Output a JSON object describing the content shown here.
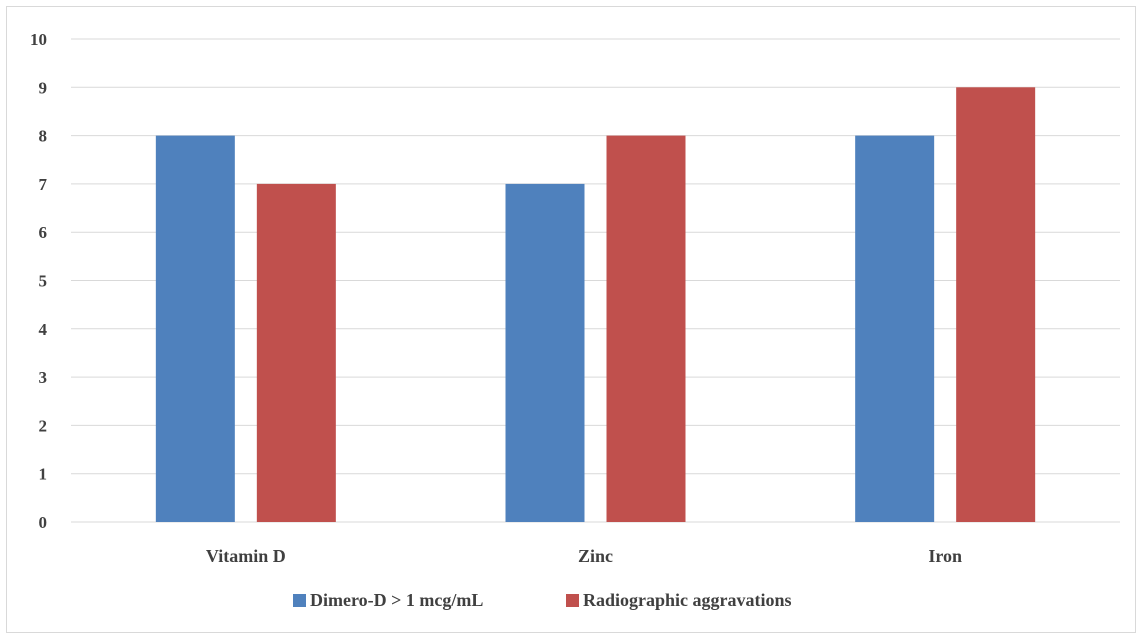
{
  "chart_data": {
    "type": "bar",
    "categories": [
      "Vitamin D",
      "Zinc",
      "Iron"
    ],
    "series": [
      {
        "name": "Dimero-D > 1 mcg/mL",
        "values": [
          8,
          7,
          8
        ],
        "color": "#4F81BD"
      },
      {
        "name": "Radiographic aggravations",
        "values": [
          7,
          8,
          9
        ],
        "color": "#C0504D"
      }
    ],
    "ylim": [
      0,
      10
    ],
    "yticks": [
      0,
      1,
      2,
      3,
      4,
      5,
      6,
      7,
      8,
      9,
      10
    ],
    "grid": true,
    "legend": "bottom",
    "gridColor": "#d9d9d9",
    "textColor": "#404040"
  }
}
